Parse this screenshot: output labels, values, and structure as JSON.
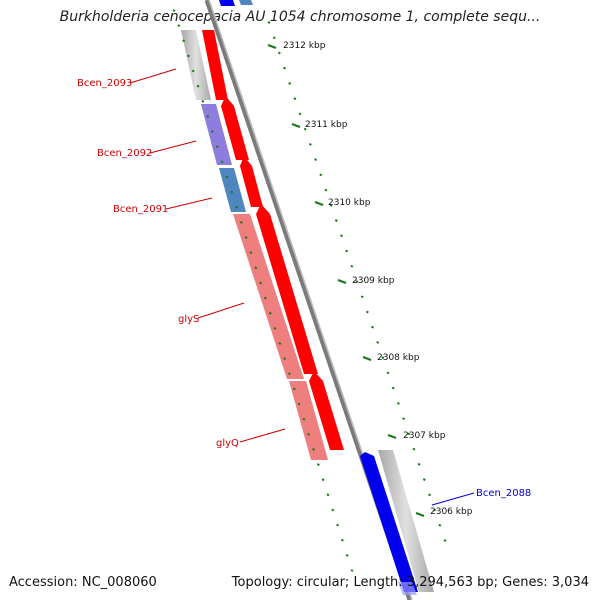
{
  "title": "Burkholderia cenocepacia AU 1054 chromosome 1, complete sequ...",
  "footer": {
    "accession_label": "Accession:",
    "accession": "NC_008060",
    "topology_label": "Topology:",
    "topology": "circular",
    "length_label": "Length:",
    "length": "3,294,563 bp",
    "genes_label": "Genes:",
    "genes": "3,034"
  },
  "ticks": [
    {
      "label": "2312 kbp"
    },
    {
      "label": "2311 kbp"
    },
    {
      "label": "2310 kbp"
    },
    {
      "label": "2309 kbp"
    },
    {
      "label": "2308 kbp"
    },
    {
      "label": "2307 kbp"
    },
    {
      "label": "2306 kbp"
    }
  ],
  "gene_labels": [
    {
      "text": "Bcen_2093",
      "color": "#cc0000"
    },
    {
      "text": "Bcen_2092",
      "color": "#cc0000"
    },
    {
      "text": "Bcen_2091",
      "color": "#cc0000"
    },
    {
      "text": "glyS",
      "color": "#cc0000"
    },
    {
      "text": "glyQ",
      "color": "#cc0000"
    },
    {
      "text": "Bcen_2088",
      "color": "#0000cc"
    }
  ],
  "colors": {
    "cds": "#ff0000",
    "gene_gray": "#bdbdbd",
    "gene_purple": "#7a66d6",
    "gene_steelblue": "#4f86c0",
    "gene_salmon": "#ef7f7f",
    "gene_blue": "#0000ee",
    "backbone": "#8c8c8c",
    "ticks": "#1a7a1a"
  }
}
